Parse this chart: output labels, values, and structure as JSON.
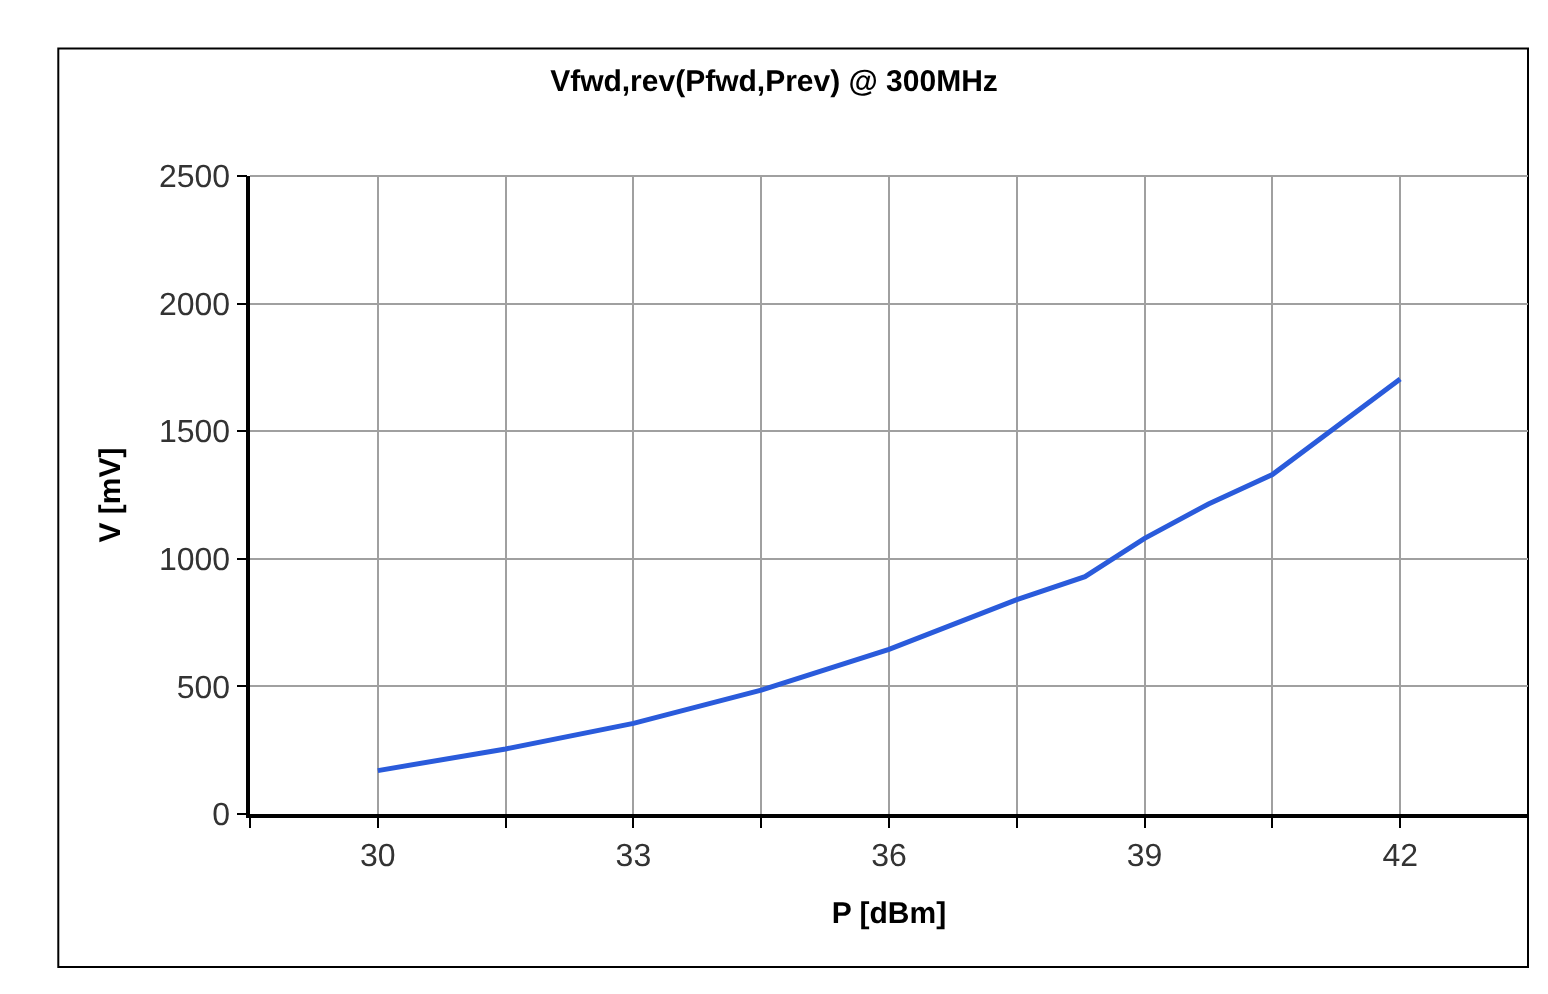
{
  "chart_data": {
    "type": "line",
    "title": "Vfwd,rev(Pfwd,Prev) @ 300MHz",
    "xlabel": "P [dBm]",
    "ylabel": "V [mV]",
    "x": [
      30,
      31.5,
      33,
      34.5,
      36,
      37.5,
      38.3,
      39,
      39.75,
      40.5,
      42
    ],
    "series": [
      {
        "color": "#2a5bdb",
        "values": [
          170,
          255,
          355,
          485,
          645,
          840,
          930,
          1080,
          1215,
          1330,
          1705
        ]
      }
    ],
    "xlim": [
      28.5,
      43.5
    ],
    "xticks": [
      {
        "value": 28.5,
        "label": null
      },
      30,
      {
        "value": 31.5,
        "label": null
      },
      33,
      {
        "value": 34.5,
        "label": null
      },
      36,
      {
        "value": 37.5,
        "label": null
      },
      39,
      {
        "value": 40.5,
        "label": null
      },
      42,
      {
        "value": 43.5,
        "label": null
      }
    ],
    "ylim": [
      0,
      2500
    ],
    "yticks": [
      0,
      500,
      1000,
      1500,
      2000,
      2500
    ],
    "grid": true,
    "marker": "none",
    "line_style": "solid"
  }
}
